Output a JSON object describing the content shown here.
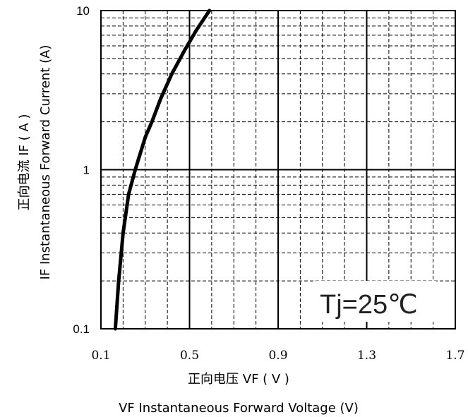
{
  "chart_data": {
    "type": "line",
    "title": "",
    "x_label_cn": "正向电压 VF ( V )",
    "x_label_en": "VF  Instantaneous Forward Voltage (V)",
    "y_label_cn": "正向电流 IF ( A )",
    "y_label_en": "IF Instantaneous Forward Current (A)",
    "xlim": [
      0.1,
      1.7
    ],
    "ylim": [
      0.1,
      10
    ],
    "y_scale": "log",
    "x_ticks": [
      "0.1",
      "0.5",
      "0.9",
      "1.3",
      "1.7"
    ],
    "y_ticks": [
      "0.1",
      "1",
      "10"
    ],
    "grid": true,
    "annotation": "Tj=25℃",
    "series": [
      {
        "name": "",
        "x": [
          0.165,
          0.18,
          0.2,
          0.225,
          0.255,
          0.3,
          0.33,
          0.37,
          0.42,
          0.48,
          0.53,
          0.59
        ],
        "y": [
          0.1,
          0.2,
          0.4,
          0.7,
          1.0,
          1.6,
          2.0,
          2.8,
          4.0,
          5.7,
          7.5,
          10.0
        ]
      }
    ]
  }
}
